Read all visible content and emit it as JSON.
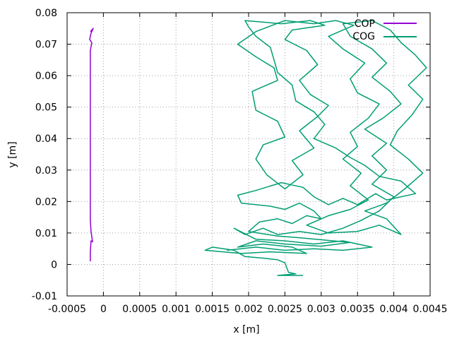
{
  "chart_data": {
    "type": "line",
    "title": "",
    "xlabel": "x [m]",
    "ylabel": "y [m]",
    "xlim": [
      -0.0005,
      0.0045
    ],
    "ylim": [
      -0.01,
      0.08
    ],
    "grid": true,
    "legend_position": "top-right",
    "x_ticks": [
      {
        "value": -0.0005,
        "label": "-0.0005"
      },
      {
        "value": 0,
        "label": "0"
      },
      {
        "value": 0.0005,
        "label": "0.0005"
      },
      {
        "value": 0.001,
        "label": "0.001"
      },
      {
        "value": 0.0015,
        "label": "0.0015"
      },
      {
        "value": 0.002,
        "label": "0.002"
      },
      {
        "value": 0.0025,
        "label": "0.0025"
      },
      {
        "value": 0.003,
        "label": "0.003"
      },
      {
        "value": 0.0035,
        "label": "0.0035"
      },
      {
        "value": 0.004,
        "label": "0.004"
      },
      {
        "value": 0.0045,
        "label": "0.0045"
      }
    ],
    "y_ticks": [
      {
        "value": -0.01,
        "label": "-0.01"
      },
      {
        "value": 0,
        "label": "0"
      },
      {
        "value": 0.01,
        "label": "0.01"
      },
      {
        "value": 0.02,
        "label": "0.02"
      },
      {
        "value": 0.03,
        "label": "0.03"
      },
      {
        "value": 0.04,
        "label": "0.04"
      },
      {
        "value": 0.05,
        "label": "0.05"
      },
      {
        "value": 0.06,
        "label": "0.06"
      },
      {
        "value": 0.07,
        "label": "0.07"
      },
      {
        "value": 0.08,
        "label": "0.08"
      }
    ],
    "series": [
      {
        "name": "COP",
        "color": "#9400d3",
        "points": [
          [
            -0.00018,
            0.001
          ],
          [
            -0.00018,
            0.004
          ],
          [
            -0.00017,
            0.0075
          ],
          [
            -0.00015,
            0.0072
          ],
          [
            -0.00017,
            0.0105
          ],
          [
            -0.00018,
            0.014
          ],
          [
            -0.00018,
            0.03
          ],
          [
            -0.00018,
            0.05
          ],
          [
            -0.00018,
            0.068
          ],
          [
            -0.00016,
            0.0705
          ],
          [
            -0.00019,
            0.0715
          ],
          [
            -0.00017,
            0.0735
          ],
          [
            -0.00014,
            0.075
          ],
          [
            -0.00018,
            0.074
          ]
        ]
      },
      {
        "name": "COG",
        "color": "#009e73",
        "points": [
          [
            0.00275,
            -0.0035
          ],
          [
            0.0024,
            -0.0035
          ],
          [
            0.00265,
            -0.003
          ],
          [
            0.00255,
            -0.0025
          ],
          [
            0.0025,
            0.0005
          ],
          [
            0.0024,
            0.0015
          ],
          [
            0.0022,
            0.002
          ],
          [
            0.00195,
            0.0025
          ],
          [
            0.0018,
            0.0045
          ],
          [
            0.0015,
            0.0055
          ],
          [
            0.0014,
            0.0045
          ],
          [
            0.0019,
            0.0035
          ],
          [
            0.0023,
            0.004
          ],
          [
            0.0028,
            0.0035
          ],
          [
            0.0026,
            0.0055
          ],
          [
            0.0022,
            0.0065
          ],
          [
            0.00185,
            0.0055
          ],
          [
            0.0021,
            0.0075
          ],
          [
            0.0025,
            0.0065
          ],
          [
            0.003,
            0.0058
          ],
          [
            0.0034,
            0.007
          ],
          [
            0.0027,
            0.0085
          ],
          [
            0.0024,
            0.009
          ],
          [
            0.002,
            0.0105
          ],
          [
            0.00215,
            0.0135
          ],
          [
            0.0024,
            0.0145
          ],
          [
            0.0026,
            0.013
          ],
          [
            0.0028,
            0.0155
          ],
          [
            0.003,
            0.0145
          ],
          [
            0.0029,
            0.017
          ],
          [
            0.0027,
            0.0195
          ],
          [
            0.0025,
            0.0175
          ],
          [
            0.0023,
            0.0185
          ],
          [
            0.0019,
            0.0195
          ],
          [
            0.00185,
            0.022
          ],
          [
            0.0021,
            0.0235
          ],
          [
            0.00245,
            0.026
          ],
          [
            0.00275,
            0.0245
          ],
          [
            0.0029,
            0.0215
          ],
          [
            0.0031,
            0.019
          ],
          [
            0.0033,
            0.021
          ],
          [
            0.0035,
            0.019
          ],
          [
            0.00375,
            0.0225
          ],
          [
            0.0039,
            0.0205
          ],
          [
            0.0043,
            0.0225
          ],
          [
            0.0041,
            0.0265
          ],
          [
            0.0038,
            0.028
          ],
          [
            0.0036,
            0.0315
          ],
          [
            0.0034,
            0.034
          ],
          [
            0.0032,
            0.037
          ],
          [
            0.0029,
            0.04
          ],
          [
            0.00305,
            0.0445
          ],
          [
            0.0029,
            0.0485
          ],
          [
            0.00265,
            0.052
          ],
          [
            0.0026,
            0.057
          ],
          [
            0.0024,
            0.061
          ],
          [
            0.00235,
            0.065
          ],
          [
            0.0023,
            0.069
          ],
          [
            0.0021,
            0.0725
          ],
          [
            0.002,
            0.0755
          ],
          [
            0.00195,
            0.0775
          ],
          [
            0.00245,
            0.0765
          ],
          [
            0.00285,
            0.0775
          ],
          [
            0.00305,
            0.076
          ],
          [
            0.0026,
            0.0745
          ],
          [
            0.0025,
            0.0715
          ],
          [
            0.0028,
            0.068
          ],
          [
            0.00295,
            0.0635
          ],
          [
            0.0027,
            0.0585
          ],
          [
            0.00285,
            0.054
          ],
          [
            0.0031,
            0.0505
          ],
          [
            0.00295,
            0.047
          ],
          [
            0.0027,
            0.0425
          ],
          [
            0.0029,
            0.037
          ],
          [
            0.0026,
            0.033
          ],
          [
            0.00275,
            0.0285
          ],
          [
            0.0025,
            0.024
          ],
          [
            0.00225,
            0.0285
          ],
          [
            0.0021,
            0.0335
          ],
          [
            0.0022,
            0.038
          ],
          [
            0.0025,
            0.0405
          ],
          [
            0.0024,
            0.0455
          ],
          [
            0.0021,
            0.049
          ],
          [
            0.00205,
            0.055
          ],
          [
            0.0024,
            0.0585
          ],
          [
            0.00235,
            0.0625
          ],
          [
            0.0021,
            0.066
          ],
          [
            0.00185,
            0.07
          ],
          [
            0.0021,
            0.074
          ],
          [
            0.0025,
            0.0775
          ],
          [
            0.0029,
            0.0765
          ],
          [
            0.0032,
            0.0775
          ],
          [
            0.00345,
            0.076
          ],
          [
            0.0031,
            0.0725
          ],
          [
            0.0033,
            0.0685
          ],
          [
            0.0036,
            0.064
          ],
          [
            0.0034,
            0.059
          ],
          [
            0.0035,
            0.0545
          ],
          [
            0.0038,
            0.051
          ],
          [
            0.00365,
            0.0465
          ],
          [
            0.0034,
            0.042
          ],
          [
            0.0035,
            0.0375
          ],
          [
            0.0033,
            0.0335
          ],
          [
            0.00355,
            0.029
          ],
          [
            0.0034,
            0.025
          ],
          [
            0.00365,
            0.0205
          ],
          [
            0.0034,
            0.0175
          ],
          [
            0.0031,
            0.0155
          ],
          [
            0.0028,
            0.0125
          ],
          [
            0.0031,
            0.01
          ],
          [
            0.0035,
            0.0105
          ],
          [
            0.0038,
            0.0125
          ],
          [
            0.0041,
            0.0095
          ],
          [
            0.0039,
            0.0145
          ],
          [
            0.0036,
            0.017
          ],
          [
            0.0039,
            0.0195
          ],
          [
            0.00415,
            0.024
          ],
          [
            0.0044,
            0.029
          ],
          [
            0.0042,
            0.0335
          ],
          [
            0.00395,
            0.038
          ],
          [
            0.00405,
            0.0425
          ],
          [
            0.00425,
            0.0475
          ],
          [
            0.0044,
            0.0525
          ],
          [
            0.0042,
            0.057
          ],
          [
            0.00445,
            0.0625
          ],
          [
            0.0043,
            0.0665
          ],
          [
            0.0041,
            0.0705
          ],
          [
            0.00395,
            0.0745
          ],
          [
            0.0037,
            0.0775
          ],
          [
            0.0033,
            0.0765
          ],
          [
            0.0034,
            0.0725
          ],
          [
            0.0037,
            0.0685
          ],
          [
            0.0039,
            0.064
          ],
          [
            0.0037,
            0.0595
          ],
          [
            0.00395,
            0.055
          ],
          [
            0.0041,
            0.051
          ],
          [
            0.00385,
            0.0465
          ],
          [
            0.0036,
            0.043
          ],
          [
            0.0039,
            0.0385
          ],
          [
            0.0037,
            0.0345
          ],
          [
            0.0039,
            0.03
          ],
          [
            0.0037,
            0.0255
          ],
          [
            0.004,
            0.0215
          ],
          [
            0.0038,
            0.017
          ],
          [
            0.00355,
            0.014
          ],
          [
            0.0033,
            0.0115
          ],
          [
            0.003,
            0.0095
          ],
          [
            0.0027,
            0.0105
          ],
          [
            0.0024,
            0.0095
          ],
          [
            0.0022,
            0.0115
          ],
          [
            0.00195,
            0.0095
          ],
          [
            0.0018,
            0.0115
          ],
          [
            0.0021,
            0.008
          ],
          [
            0.0025,
            0.0075
          ],
          [
            0.0029,
            0.0065
          ],
          [
            0.0033,
            0.0075
          ],
          [
            0.0037,
            0.0055
          ],
          [
            0.0033,
            0.0045
          ],
          [
            0.0029,
            0.005
          ],
          [
            0.0025,
            0.0045
          ],
          [
            0.0021,
            0.0055
          ],
          [
            0.0017,
            0.0045
          ]
        ]
      }
    ]
  }
}
